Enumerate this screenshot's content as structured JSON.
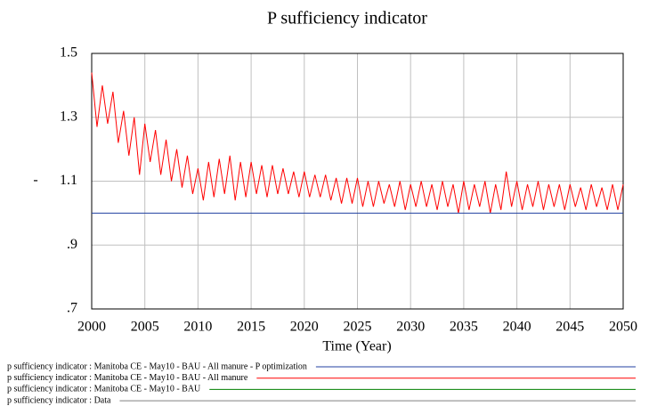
{
  "chart_data": {
    "type": "line",
    "title": "P sufficiency indicator",
    "x_label": "Time (Year)",
    "y_label": "-",
    "x": [
      2000,
      2000.5,
      2001,
      2001.5,
      2002,
      2002.5,
      2003,
      2003.5,
      2004,
      2004.5,
      2005,
      2005.5,
      2006,
      2006.5,
      2007,
      2007.5,
      2008,
      2008.5,
      2009,
      2009.5,
      2010,
      2010.5,
      2011,
      2011.5,
      2012,
      2012.5,
      2013,
      2013.5,
      2014,
      2014.5,
      2015,
      2015.5,
      2016,
      2016.5,
      2017,
      2017.5,
      2018,
      2018.5,
      2019,
      2019.5,
      2020,
      2020.5,
      2021,
      2021.5,
      2022,
      2022.5,
      2023,
      2023.5,
      2024,
      2024.5,
      2025,
      2025.5,
      2026,
      2026.5,
      2027,
      2027.5,
      2028,
      2028.5,
      2029,
      2029.5,
      2030,
      2030.5,
      2031,
      2031.5,
      2032,
      2032.5,
      2033,
      2033.5,
      2034,
      2034.5,
      2035,
      2035.5,
      2036,
      2036.5,
      2037,
      2037.5,
      2038,
      2038.5,
      2039,
      2039.5,
      2040,
      2040.5,
      2041,
      2041.5,
      2042,
      2042.5,
      2043,
      2043.5,
      2044,
      2044.5,
      2045,
      2045.5,
      2046,
      2046.5,
      2047,
      2047.5,
      2048,
      2048.5,
      2049,
      2049.5,
      2050
    ],
    "series": [
      {
        "name": "p sufficiency indicator : Manitoba CE - May10 - BAU - All manure - P optimization",
        "color": "#2040a0",
        "values": [
          1,
          1,
          1,
          1,
          1,
          1,
          1,
          1,
          1,
          1,
          1,
          1,
          1,
          1,
          1,
          1,
          1,
          1,
          1,
          1,
          1,
          1,
          1,
          1,
          1,
          1,
          1,
          1,
          1,
          1,
          1,
          1,
          1,
          1,
          1,
          1,
          1,
          1,
          1,
          1,
          1,
          1,
          1,
          1,
          1,
          1,
          1,
          1,
          1,
          1,
          1,
          1,
          1,
          1,
          1,
          1,
          1,
          1,
          1,
          1,
          1,
          1,
          1,
          1,
          1,
          1,
          1,
          1,
          1,
          1,
          1,
          1,
          1,
          1,
          1,
          1,
          1,
          1,
          1,
          1,
          1,
          1,
          1,
          1,
          1,
          1,
          1,
          1,
          1,
          1,
          1,
          1,
          1,
          1,
          1,
          1,
          1,
          1,
          1,
          1,
          1
        ]
      },
      {
        "name": "p sufficiency indicator : Manitoba CE - May10 - BAU - All manure",
        "color": "#ff0000",
        "values": [
          1.44,
          1.27,
          1.4,
          1.28,
          1.38,
          1.22,
          1.32,
          1.18,
          1.3,
          1.12,
          1.28,
          1.16,
          1.26,
          1.12,
          1.23,
          1.1,
          1.2,
          1.08,
          1.18,
          1.06,
          1.14,
          1.04,
          1.16,
          1.05,
          1.17,
          1.06,
          1.18,
          1.04,
          1.16,
          1.05,
          1.16,
          1.06,
          1.15,
          1.05,
          1.15,
          1.06,
          1.14,
          1.06,
          1.13,
          1.05,
          1.13,
          1.05,
          1.12,
          1.05,
          1.12,
          1.04,
          1.11,
          1.03,
          1.11,
          1.03,
          1.11,
          1.02,
          1.1,
          1.02,
          1.1,
          1.03,
          1.09,
          1.02,
          1.1,
          1.01,
          1.09,
          1.02,
          1.1,
          1.02,
          1.09,
          1.01,
          1.1,
          1.02,
          1.09,
          1.0,
          1.1,
          1.01,
          1.09,
          1.02,
          1.1,
          1.0,
          1.09,
          1.01,
          1.13,
          1.02,
          1.1,
          1.01,
          1.09,
          1.02,
          1.1,
          1.01,
          1.09,
          1.02,
          1.09,
          1.01,
          1.09,
          1.02,
          1.08,
          1.01,
          1.09,
          1.02,
          1.08,
          1.01,
          1.09,
          1.01,
          1.09
        ]
      },
      {
        "name": "p sufficiency indicator : Manitoba CE - May10 - BAU",
        "color": "#008000",
        "values": [
          null,
          null,
          null,
          null,
          null,
          null,
          null,
          null,
          null,
          null,
          null,
          null,
          null,
          null,
          null,
          null,
          null,
          null,
          null,
          null,
          null,
          null,
          null,
          null,
          null,
          null,
          null,
          null,
          null,
          null,
          null,
          null,
          null,
          null,
          null,
          null,
          null,
          null,
          null,
          null,
          null,
          null,
          null,
          null,
          null,
          null,
          null,
          null,
          null,
          null,
          null,
          null,
          null,
          null,
          null,
          null,
          null,
          null,
          null,
          null,
          null,
          null,
          null,
          null,
          null,
          null,
          null,
          null,
          null,
          null,
          null,
          null,
          null,
          null,
          null,
          null,
          null,
          null,
          null,
          null,
          null,
          null,
          null,
          null,
          null,
          null,
          null,
          null,
          null,
          null,
          null,
          null,
          null,
          null,
          null,
          null,
          null,
          null,
          null,
          null,
          null
        ]
      },
      {
        "name": "p sufficiency indicator : Data",
        "color": "#808080",
        "values": [
          null,
          null,
          null,
          null,
          null,
          null,
          null,
          null,
          null,
          null,
          null,
          null,
          null,
          null,
          null,
          null,
          null,
          null,
          null,
          null,
          null,
          null,
          null,
          null,
          null,
          null,
          null,
          null,
          null,
          null,
          null,
          null,
          null,
          null,
          null,
          null,
          null,
          null,
          null,
          null,
          null,
          null,
          null,
          null,
          null,
          null,
          null,
          null,
          null,
          null,
          null,
          null,
          null,
          null,
          null,
          null,
          null,
          null,
          null,
          null,
          null,
          null,
          null,
          null,
          null,
          null,
          null,
          null,
          null,
          null,
          null,
          null,
          null,
          null,
          null,
          null,
          null,
          null,
          null,
          null,
          null,
          null,
          null,
          null,
          null,
          null,
          null,
          null,
          null,
          null,
          null,
          null,
          null,
          null,
          null,
          null,
          null,
          null,
          null,
          null,
          null
        ]
      }
    ],
    "xlim": [
      2000,
      2050
    ],
    "xticks": [
      2000,
      2005,
      2010,
      2015,
      2020,
      2025,
      2030,
      2035,
      2040,
      2045,
      2050
    ],
    "ylim": [
      0.7,
      1.5
    ],
    "yticks": [
      {
        "value": 0.7,
        "label": ".7"
      },
      {
        "value": 0.9,
        "label": ".9"
      },
      1.1,
      1.3,
      1.5
    ],
    "grid": true
  }
}
